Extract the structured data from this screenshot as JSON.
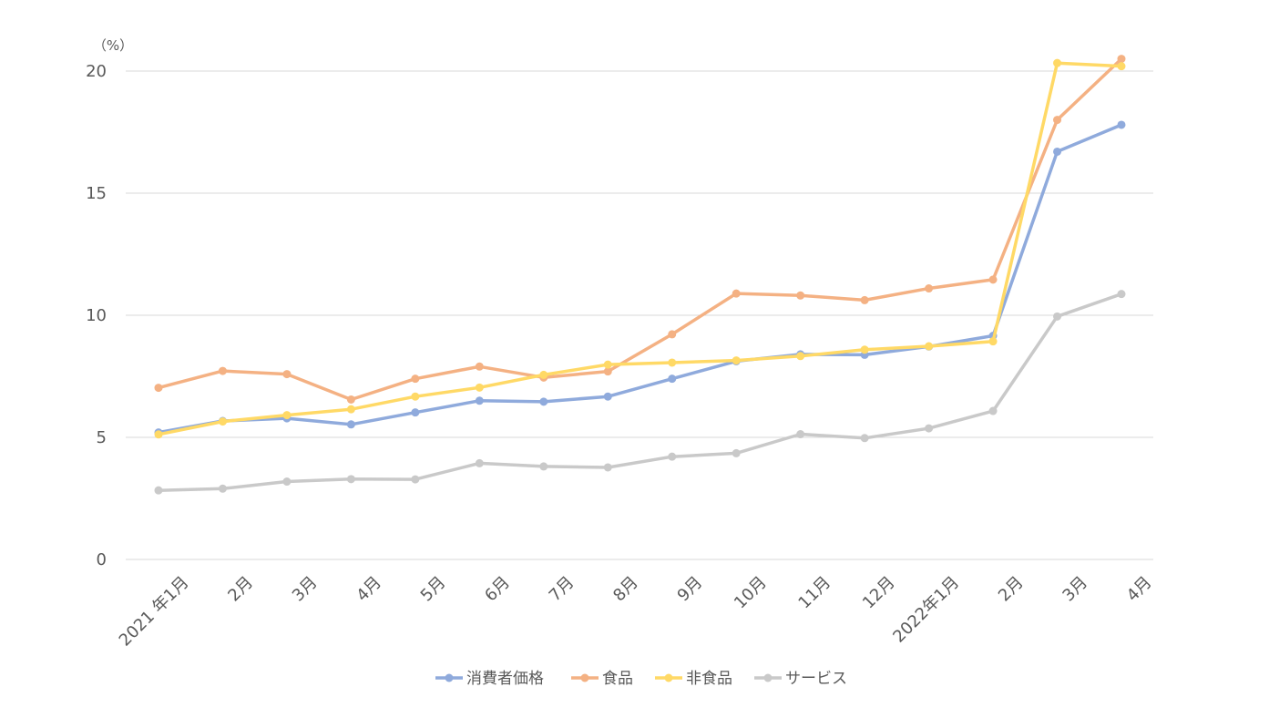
{
  "chart_data": {
    "type": "line",
    "unit_label": "（%）",
    "categories": [
      "2021 年1月",
      "2月",
      "3月",
      "4月",
      "5月",
      "6月",
      "7月",
      "8月",
      "9月",
      "10月",
      "11月",
      "12月",
      "2022年1月",
      "2月",
      "3月",
      "4月"
    ],
    "ylim": [
      0,
      20
    ],
    "yticks": [
      "0",
      "5",
      "10",
      "15",
      "20"
    ],
    "grid": true,
    "legend_position": "bottom",
    "series": [
      {
        "name": "消費者価格",
        "color": "#8FAADC",
        "values": [
          5.2,
          5.67,
          5.78,
          5.53,
          6.02,
          6.5,
          6.46,
          6.67,
          7.4,
          8.12,
          8.4,
          8.38,
          8.72,
          9.16,
          16.7,
          17.8
        ]
      },
      {
        "name": "食品",
        "color": "#F4B183",
        "values": [
          7.03,
          7.72,
          7.59,
          6.55,
          7.4,
          7.9,
          7.45,
          7.7,
          9.22,
          10.89,
          10.81,
          10.62,
          11.1,
          11.46,
          18.0,
          20.5
        ]
      },
      {
        "name": "非食品",
        "color": "#FFD966",
        "values": [
          5.12,
          5.65,
          5.91,
          6.15,
          6.67,
          7.04,
          7.56,
          7.98,
          8.06,
          8.15,
          8.33,
          8.59,
          8.73,
          8.93,
          20.33,
          20.2
        ]
      },
      {
        "name": "サービス",
        "color": "#C9C9C9",
        "values": [
          2.83,
          2.9,
          3.19,
          3.29,
          3.28,
          3.94,
          3.81,
          3.77,
          4.21,
          4.35,
          5.13,
          4.97,
          5.37,
          6.08,
          9.95,
          10.87
        ]
      }
    ]
  }
}
